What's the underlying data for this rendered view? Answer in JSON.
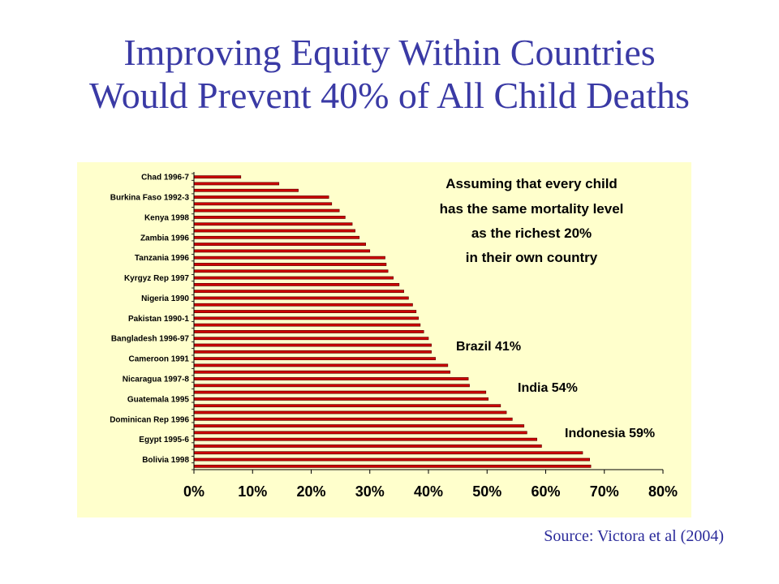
{
  "slide": {
    "title_line1": "Improving Equity Within Countries",
    "title_line2": "Would Prevent 40% of All Child Deaths",
    "source": "Source: Victora et al (2004)"
  },
  "colors": {
    "title": "#3a3aa5",
    "panel_background": "#ffffcc",
    "bar_fill": "#cc0000",
    "bar_stroke": "#550000"
  },
  "chart_data": {
    "type": "bar",
    "orientation": "horizontal",
    "xlim": [
      0,
      80
    ],
    "x_tick_labels": [
      "0%",
      "10%",
      "20%",
      "30%",
      "40%",
      "50%",
      "60%",
      "70%",
      "80%"
    ],
    "y_tick_labels": [
      "Chad 1996-7",
      "Burkina Faso 1992-3",
      "Kenya 1998",
      "Zambia 1996",
      "Tanzania 1996",
      "Kyrgyz Rep 1997",
      "Nigeria 1990",
      "Pakistan 1990-1",
      "Bangladesh 1996-97",
      "Cameroon 1991",
      "Nicaragua 1997-8",
      "Guatemala 1995",
      "Dominican Rep 1996",
      "Egypt 1995-6",
      "Bolivia 1998"
    ],
    "values": [
      8,
      14.5,
      17.8,
      23,
      23.5,
      24.8,
      25.8,
      27,
      27.5,
      28.2,
      29.3,
      30,
      32.6,
      32.8,
      33.1,
      34,
      35,
      35.8,
      36.6,
      37.3,
      37.9,
      38.3,
      38.6,
      39.2,
      40,
      40.5,
      40.5,
      41.2,
      43.3,
      43.7,
      46.8,
      47,
      49.8,
      50.2,
      52.3,
      53.3,
      54.3,
      56.3,
      56.8,
      58.5,
      59.3,
      66.3,
      67.5,
      67.7
    ],
    "annotations": [
      {
        "id": "assumption",
        "lines": [
          "Assuming that every child",
          "has the same mortality level",
          "as the richest 20%",
          "in their own country"
        ]
      },
      {
        "id": "brazil",
        "text": "Brazil 41%"
      },
      {
        "id": "india",
        "text": "India 54%"
      },
      {
        "id": "indonesia",
        "text": "Indonesia 59%"
      }
    ]
  }
}
